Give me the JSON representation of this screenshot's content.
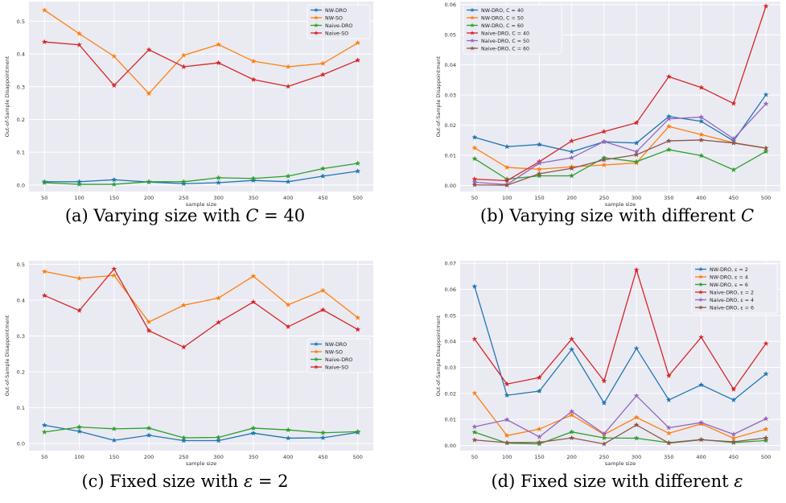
{
  "chart_data": [
    {
      "type": "line",
      "caption": "(a) Varying size with C = 40",
      "caption_parts": [
        "(a) Varying size with ",
        "C",
        " = 40"
      ],
      "xlabel": "sample size",
      "ylabel": "Out-of-Sample Disappointment",
      "x": [
        50,
        100,
        150,
        200,
        250,
        300,
        350,
        400,
        450,
        500
      ],
      "ylim": [
        -0.02,
        0.56
      ],
      "yticks": [
        0.0,
        0.1,
        0.2,
        0.3,
        0.4,
        0.5
      ],
      "ytick_labels": [
        "0.0",
        "0.1",
        "0.2",
        "0.3",
        "0.4",
        "0.5"
      ],
      "legend_position": "top-right",
      "grid": true,
      "series": [
        {
          "name": "NW-DRO",
          "color": "#1f77b4",
          "values": [
            0.01,
            0.01,
            0.016,
            0.009,
            0.004,
            0.007,
            0.014,
            0.01,
            0.027,
            0.042
          ]
        },
        {
          "name": "NW-SO",
          "color": "#ff7f0e",
          "values": [
            0.534,
            0.462,
            0.393,
            0.279,
            0.396,
            0.429,
            0.378,
            0.361,
            0.371,
            0.434
          ]
        },
        {
          "name": "Naive-DRO",
          "color": "#2ca02c",
          "values": [
            0.007,
            0.002,
            0.002,
            0.01,
            0.01,
            0.022,
            0.02,
            0.027,
            0.05,
            0.066
          ]
        },
        {
          "name": "Naive-SO",
          "color": "#d62728",
          "values": [
            0.437,
            0.428,
            0.304,
            0.413,
            0.361,
            0.373,
            0.322,
            0.301,
            0.337,
            0.381
          ]
        }
      ]
    },
    {
      "type": "line",
      "caption": "(b) Varying size with different C",
      "caption_parts": [
        "(b) Varying size with different ",
        "C",
        ""
      ],
      "xlabel": "sample size",
      "ylabel": "Out-of-Sample Disappointment",
      "x": [
        50,
        100,
        150,
        200,
        250,
        300,
        350,
        400,
        450,
        500
      ],
      "ylim": [
        -0.002,
        0.061
      ],
      "yticks": [
        0.0,
        0.01,
        0.02,
        0.03,
        0.04,
        0.05,
        0.06
      ],
      "ytick_labels": [
        "0.00",
        "0.01",
        "0.02",
        "0.03",
        "0.04",
        "0.05",
        "0.06"
      ],
      "legend_position": "top-left",
      "grid": true,
      "series": [
        {
          "name": "NW-DRO, C = 40",
          "color": "#1f77b4",
          "values": [
            0.016,
            0.0129,
            0.0136,
            0.0112,
            0.0145,
            0.0141,
            0.0229,
            0.0213,
            0.0148,
            0.0301
          ]
        },
        {
          "name": "NW-DRO, C = 50",
          "color": "#ff7f0e",
          "values": [
            0.0125,
            0.006,
            0.0054,
            0.0062,
            0.0068,
            0.0075,
            0.0196,
            0.0169,
            0.0142,
            0.0124
          ]
        },
        {
          "name": "NW-DRO, C = 60",
          "color": "#2ca02c",
          "values": [
            0.0089,
            0.0021,
            0.0032,
            0.0032,
            0.0092,
            0.0079,
            0.0119,
            0.0099,
            0.0052,
            0.0113
          ]
        },
        {
          "name": "Naive-DRO, C = 40",
          "color": "#d62728",
          "values": [
            0.0021,
            0.0016,
            0.0079,
            0.0148,
            0.0179,
            0.0208,
            0.0361,
            0.0325,
            0.0272,
            0.0595
          ]
        },
        {
          "name": "Naive-DRO, C = 50",
          "color": "#9467bd",
          "values": [
            0.0011,
            0.0003,
            0.0074,
            0.0092,
            0.0146,
            0.0112,
            0.0221,
            0.0227,
            0.0155,
            0.0271
          ]
        },
        {
          "name": "Naive-DRO, C = 60",
          "color": "#8c564b",
          "values": [
            0.0002,
            0.0001,
            0.0039,
            0.0057,
            0.0085,
            0.0102,
            0.0148,
            0.0151,
            0.0141,
            0.0124
          ]
        }
      ]
    },
    {
      "type": "line",
      "caption": "(c) Fixed size with ε = 2",
      "caption_parts": [
        "(c) Fixed size with ",
        "ε",
        " = 2"
      ],
      "xlabel": "sample size",
      "ylabel": "Out-of-Sample Disappointment",
      "x": [
        50,
        100,
        150,
        200,
        250,
        300,
        350,
        400,
        450,
        500
      ],
      "ylim": [
        -0.02,
        0.51
      ],
      "yticks": [
        0.0,
        0.1,
        0.2,
        0.3,
        0.4,
        0.5
      ],
      "ytick_labels": [
        "0.0",
        "0.1",
        "0.2",
        "0.3",
        "0.4",
        "0.5"
      ],
      "legend_position": "center-right",
      "grid": true,
      "series": [
        {
          "name": "NW-DRO",
          "color": "#1f77b4",
          "values": [
            0.051,
            0.034,
            0.009,
            0.023,
            0.008,
            0.008,
            0.029,
            0.015,
            0.016,
            0.031
          ]
        },
        {
          "name": "NW-SO",
          "color": "#ff7f0e",
          "values": [
            0.48,
            0.461,
            0.469,
            0.339,
            0.386,
            0.406,
            0.467,
            0.387,
            0.427,
            0.351
          ]
        },
        {
          "name": "Naive-DRO",
          "color": "#2ca02c",
          "values": [
            0.032,
            0.046,
            0.041,
            0.043,
            0.016,
            0.017,
            0.043,
            0.038,
            0.03,
            0.033
          ]
        },
        {
          "name": "Naive-SO",
          "color": "#d62728",
          "values": [
            0.413,
            0.371,
            0.487,
            0.315,
            0.269,
            0.338,
            0.395,
            0.326,
            0.373,
            0.318
          ]
        }
      ]
    },
    {
      "type": "line",
      "caption": "(d) Fixed size with different ε",
      "caption_parts": [
        "(d) Fixed size with different ",
        "ε",
        ""
      ],
      "xlabel": "sample size",
      "ylabel": "Out-of-Sample Disappointment",
      "x": [
        50,
        100,
        150,
        200,
        250,
        300,
        350,
        400,
        450,
        500
      ],
      "ylim": [
        -0.002,
        0.071
      ],
      "yticks": [
        0.0,
        0.01,
        0.02,
        0.03,
        0.04,
        0.05,
        0.06,
        0.07
      ],
      "ytick_labels": [
        "0.00",
        "0.01",
        "0.02",
        "0.03",
        "0.04",
        "0.05",
        "0.06",
        "0.07"
      ],
      "legend_position": "top-right",
      "grid": true,
      "series": [
        {
          "name": "NW-DRO, ε = 2",
          "color": "#1f77b4",
          "values": [
            0.0611,
            0.0193,
            0.0209,
            0.0369,
            0.0163,
            0.0373,
            0.0175,
            0.0233,
            0.0175,
            0.0275
          ]
        },
        {
          "name": "NW-DRO, ε = 4",
          "color": "#ff7f0e",
          "values": [
            0.0201,
            0.0038,
            0.0063,
            0.0117,
            0.0042,
            0.0108,
            0.0047,
            0.0083,
            0.0028,
            0.0063
          ]
        },
        {
          "name": "NW-DRO, ε = 6",
          "color": "#2ca02c",
          "values": [
            0.0051,
            0.0009,
            0.0006,
            0.0052,
            0.0029,
            0.0028,
            0.0011,
            0.0023,
            0.0011,
            0.0019
          ]
        },
        {
          "name": "Naive-DRO, ε = 2",
          "color": "#d62728",
          "values": [
            0.0409,
            0.0236,
            0.0261,
            0.0409,
            0.0248,
            0.0675,
            0.0268,
            0.0416,
            0.0216,
            0.0392
          ]
        },
        {
          "name": "Naive-DRO, ε = 4",
          "color": "#9467bd",
          "values": [
            0.0072,
            0.0099,
            0.0033,
            0.0131,
            0.0045,
            0.0191,
            0.0068,
            0.0088,
            0.0043,
            0.0103
          ]
        },
        {
          "name": "Naive-DRO, ε = 6",
          "color": "#8c564b",
          "values": [
            0.0021,
            0.0011,
            0.0012,
            0.0029,
            0.0006,
            0.0079,
            0.0009,
            0.0022,
            0.0014,
            0.0029
          ]
        }
      ]
    }
  ]
}
